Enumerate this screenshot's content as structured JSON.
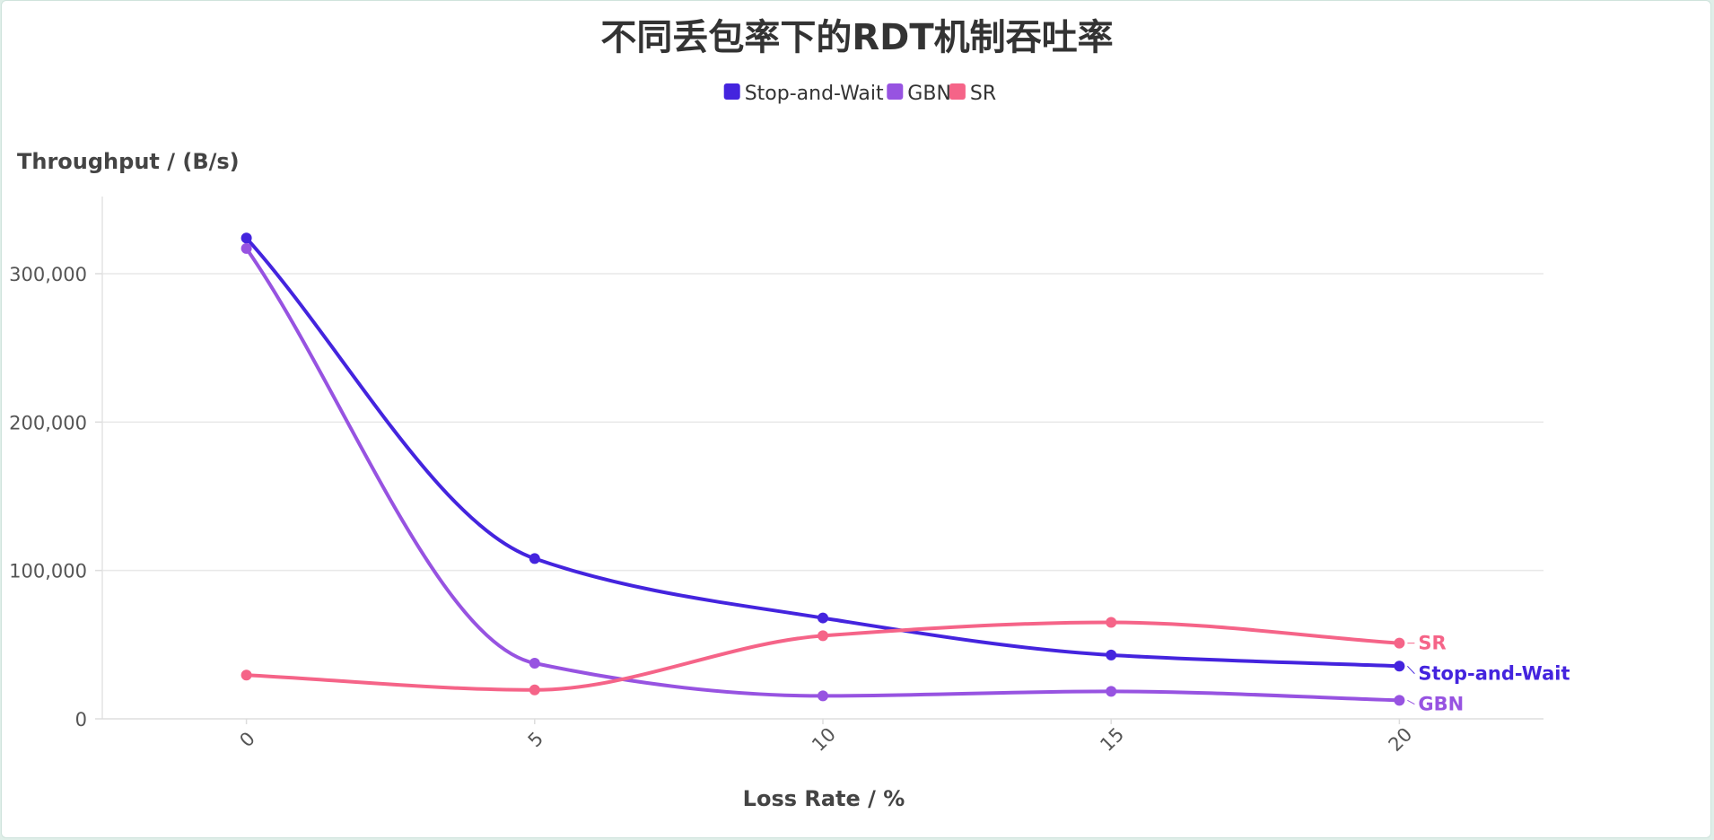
{
  "chart_data": {
    "type": "line",
    "title": "不同丢包率下的RDT机制吞吐率",
    "xlabel": "Loss Rate / %",
    "ylabel": "Throughput / (B/s)",
    "x": [
      0,
      5,
      10,
      15,
      20
    ],
    "x_ticks": [
      "0",
      "5",
      "10",
      "15",
      "20"
    ],
    "xlim": [
      -2.5,
      22.5
    ],
    "y_ticks": [
      "0",
      "100,000",
      "200,000",
      "300,000"
    ],
    "y_tick_values": [
      0,
      100000,
      200000,
      300000
    ],
    "ylim": [
      0,
      352000
    ],
    "grid": true,
    "legend_position": "top-center",
    "series": [
      {
        "name": "Stop-and-Wait",
        "color": "#4424de",
        "values": [
          324000,
          108000,
          68000,
          43000,
          35500
        ]
      },
      {
        "name": "GBN",
        "color": "#9753e1",
        "values": [
          317000,
          37500,
          15500,
          18500,
          12500
        ]
      },
      {
        "name": "SR",
        "color": "#f56488",
        "values": [
          29500,
          19500,
          56000,
          65000,
          51000
        ]
      }
    ]
  }
}
